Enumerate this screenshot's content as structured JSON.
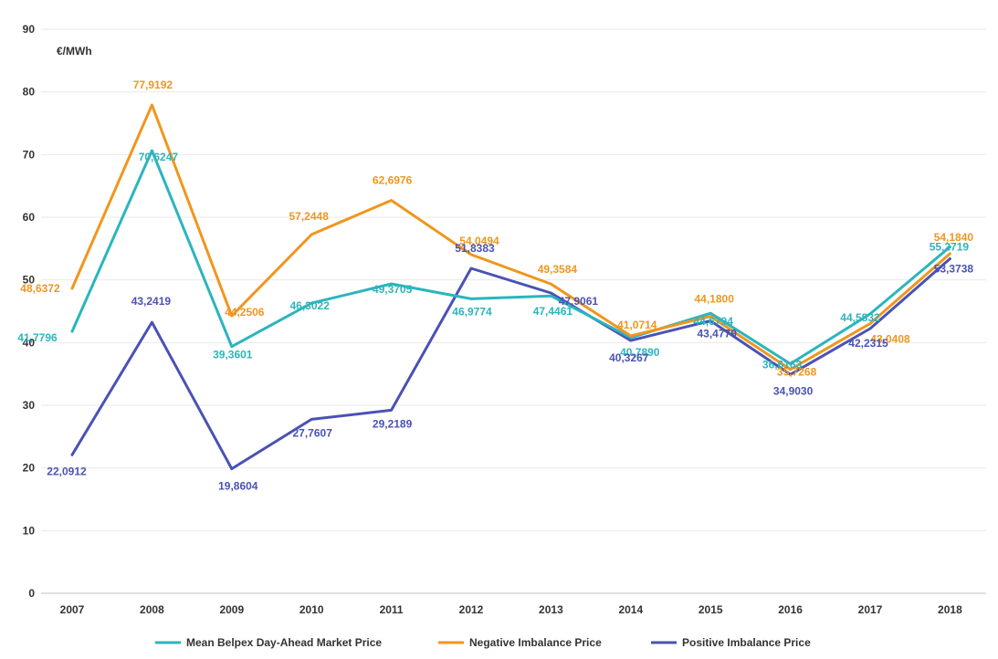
{
  "chart_data": {
    "type": "line",
    "unit_label": "€/MWh",
    "categories": [
      "2007",
      "2008",
      "2009",
      "2010",
      "2011",
      "2012",
      "2013",
      "2014",
      "2015",
      "2016",
      "2017",
      "2018"
    ],
    "ylim": [
      0,
      90
    ],
    "yticks": [
      "0",
      "10",
      "20",
      "30",
      "40",
      "50",
      "60",
      "70",
      "80",
      "90"
    ],
    "grid": true,
    "legend_position": "bottom",
    "series": [
      {
        "name": "Mean Belpex Day-Ahead Market Price",
        "color": "#2bb5bd",
        "values": [
          41.7796,
          70.6247,
          39.3601,
          46.3022,
          49.3705,
          46.9774,
          47.4461,
          40.789,
          44.6794,
          36.6163,
          44.5832,
          55.2719
        ],
        "labels": [
          "41,7796",
          "70,6247",
          "39,3601",
          "46,3022",
          "49,3705",
          "46,9774",
          "47,4461",
          "40,7890",
          "44,6794",
          "36,6163",
          "44,5832",
          "55,2719"
        ]
      },
      {
        "name": "Negative Imbalance Price",
        "color": "#f0961e",
        "values": [
          48.6372,
          77.9192,
          44.2506,
          57.2448,
          62.6976,
          54.0494,
          49.3584,
          41.0714,
          44.18,
          35.7268,
          43.0408,
          54.184
        ],
        "labels": [
          "48,6372",
          "77,9192",
          "44,2506",
          "57,2448",
          "62,6976",
          "54,0494",
          "49,3584",
          "41,0714",
          "44,1800",
          "35,7268",
          "43,0408",
          "54,1840"
        ]
      },
      {
        "name": "Positive Imbalance Price",
        "color": "#4a52b4",
        "values": [
          22.0912,
          43.2419,
          19.8604,
          27.7607,
          29.2189,
          51.8383,
          47.9061,
          40.3267,
          43.4779,
          34.903,
          42.2315,
          53.3738
        ],
        "labels": [
          "22,0912",
          "43,2419",
          "19,8604",
          "27,7607",
          "29,2189",
          "51,8383",
          "47,9061",
          "40,3267",
          "43,4779",
          "34,9030",
          "42,2315",
          "53,3738"
        ]
      }
    ]
  }
}
